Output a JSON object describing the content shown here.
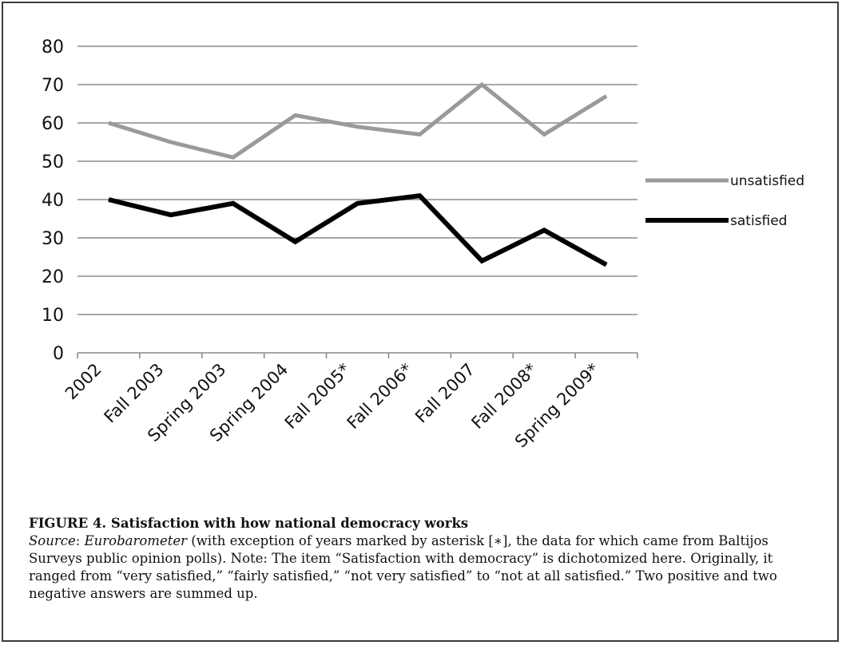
{
  "chart_data": {
    "type": "line",
    "categories": [
      "2002",
      "Fall 2003",
      "Spring 2003",
      "Spring 2004",
      "Fall 2005*",
      "Fall 2006*",
      "Fall 2007",
      "Fall 2008*",
      "Spring 2009*"
    ],
    "series": [
      {
        "name": "unsatisfied",
        "values": [
          60,
          55,
          51,
          62,
          59,
          57,
          70,
          57,
          67
        ],
        "color": "#9a9a9a"
      },
      {
        "name": "satisfied",
        "values": [
          40,
          36,
          39,
          29,
          39,
          41,
          24,
          32,
          23
        ],
        "color": "#000000"
      }
    ],
    "ylim": [
      0,
      80
    ],
    "yticks": [
      "0",
      "10",
      "20",
      "30",
      "40",
      "50",
      "60",
      "70",
      "80"
    ],
    "grid": true,
    "legend_position": "right",
    "title": "",
    "xlabel": "",
    "ylabel": ""
  },
  "caption": {
    "title": "FIGURE 4. Satisfaction with how national democracy works",
    "source_label": "Source",
    "source_name": "Eurobarometer",
    "body": " (with exception of years marked by asterisk [∗], the data for which came from Baltijos Surveys public opinion polls). Note: The item “Satisfaction with democracy” is dichotomized here. Originally, it ranged from “very satisfied,” “fairly satisfied,” “not very satisfied” to “not at all satisfied.” Two positive and two negative answers are summed up."
  }
}
